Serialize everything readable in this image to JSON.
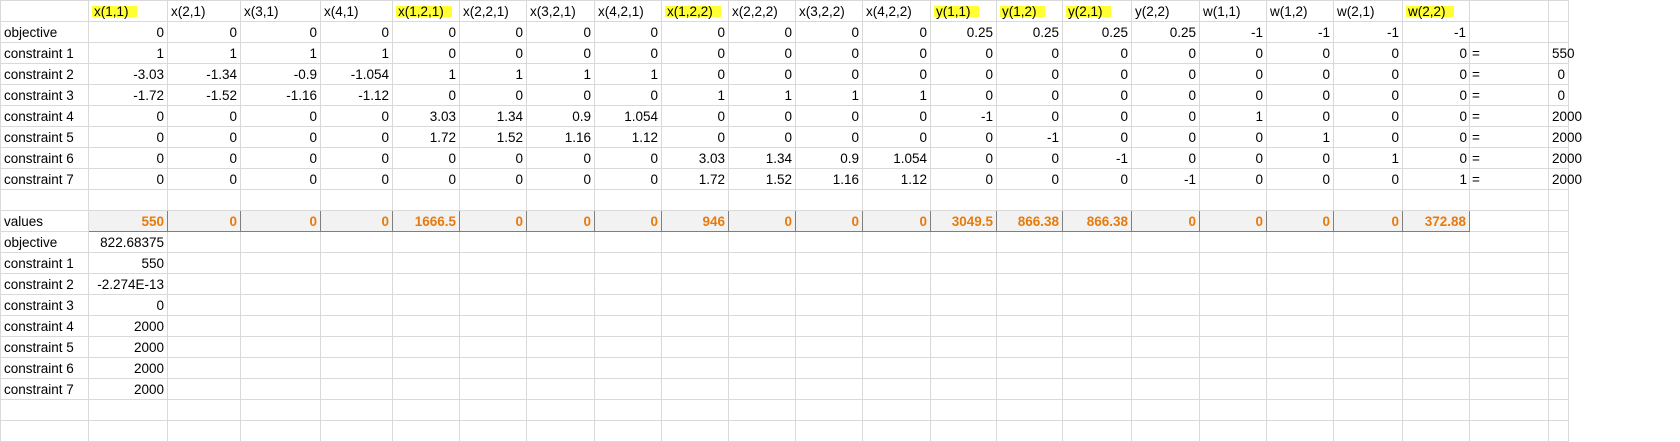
{
  "highlight_color": "#FFFF33",
  "value_color": "#E97A0A",
  "headers": [
    {
      "text": "x(1,1)",
      "hl": true
    },
    {
      "text": "x(2,1)",
      "hl": false
    },
    {
      "text": "x(3,1)",
      "hl": false
    },
    {
      "text": "x(4,1)",
      "hl": false
    },
    {
      "text": "x(1,2,1)",
      "hl": true
    },
    {
      "text": "x(2,2,1)",
      "hl": false
    },
    {
      "text": "x(3,2,1)",
      "hl": false
    },
    {
      "text": "x(4,2,1)",
      "hl": false
    },
    {
      "text": "x(1,2,2)",
      "hl": true
    },
    {
      "text": "x(2,2,2)",
      "hl": false
    },
    {
      "text": "x(3,2,2)",
      "hl": false
    },
    {
      "text": "x(4,2,2)",
      "hl": false
    },
    {
      "text": "y(1,1)",
      "hl": true
    },
    {
      "text": "y(1,2)",
      "hl": true
    },
    {
      "text": "y(2,1)",
      "hl": true
    },
    {
      "text": "y(2,2)",
      "hl": false
    },
    {
      "text": "w(1,1)",
      "hl": false
    },
    {
      "text": "w(1,2)",
      "hl": false
    },
    {
      "text": "w(2,1)",
      "hl": false
    },
    {
      "text": "w(2,2)",
      "hl": true
    }
  ],
  "matrix": [
    {
      "label": "objective",
      "values": [
        "0",
        "0",
        "0",
        "0",
        "0",
        "0",
        "0",
        "0",
        "0",
        "0",
        "0",
        "0",
        "0.25",
        "0.25",
        "0.25",
        "0.25",
        "-1",
        "-1",
        "-1",
        "-1"
      ],
      "eq": "",
      "rhs": ""
    },
    {
      "label": "constraint 1",
      "values": [
        "1",
        "1",
        "1",
        "1",
        "0",
        "0",
        "0",
        "0",
        "0",
        "0",
        "0",
        "0",
        "0",
        "0",
        "0",
        "0",
        "0",
        "0",
        "0",
        "0"
      ],
      "eq": "=",
      "rhs": "550"
    },
    {
      "label": "constraint 2",
      "values": [
        "-3.03",
        "-1.34",
        "-0.9",
        "-1.054",
        "1",
        "1",
        "1",
        "1",
        "0",
        "0",
        "0",
        "0",
        "0",
        "0",
        "0",
        "0",
        "0",
        "0",
        "0",
        "0"
      ],
      "eq": "=",
      "rhs": "0"
    },
    {
      "label": "constraint 3",
      "values": [
        "-1.72",
        "-1.52",
        "-1.16",
        "-1.12",
        "0",
        "0",
        "0",
        "0",
        "1",
        "1",
        "1",
        "1",
        "0",
        "0",
        "0",
        "0",
        "0",
        "0",
        "0",
        "0"
      ],
      "eq": "=",
      "rhs": "0"
    },
    {
      "label": "constraint 4",
      "values": [
        "0",
        "0",
        "0",
        "0",
        "3.03",
        "1.34",
        "0.9",
        "1.054",
        "0",
        "0",
        "0",
        "0",
        "-1",
        "0",
        "0",
        "0",
        "1",
        "0",
        "0",
        "0"
      ],
      "eq": "=",
      "rhs": "2000"
    },
    {
      "label": "constraint 5",
      "values": [
        "0",
        "0",
        "0",
        "0",
        "1.72",
        "1.52",
        "1.16",
        "1.12",
        "0",
        "0",
        "0",
        "0",
        "0",
        "-1",
        "0",
        "0",
        "0",
        "1",
        "0",
        "0"
      ],
      "eq": "=",
      "rhs": "2000"
    },
    {
      "label": "constraint 6",
      "values": [
        "0",
        "0",
        "0",
        "0",
        "0",
        "0",
        "0",
        "0",
        "3.03",
        "1.34",
        "0.9",
        "1.054",
        "0",
        "0",
        "-1",
        "0",
        "0",
        "0",
        "1",
        "0"
      ],
      "eq": "=",
      "rhs": "2000"
    },
    {
      "label": "constraint 7",
      "values": [
        "0",
        "0",
        "0",
        "0",
        "0",
        "0",
        "0",
        "0",
        "1.72",
        "1.52",
        "1.16",
        "1.12",
        "0",
        "0",
        "0",
        "-1",
        "0",
        "0",
        "0",
        "1"
      ],
      "eq": "=",
      "rhs": "2000"
    }
  ],
  "values_label": "values",
  "values": [
    "550",
    "0",
    "0",
    "0",
    "1666.5",
    "0",
    "0",
    "0",
    "946",
    "0",
    "0",
    "0",
    "3049.5",
    "866.38",
    "866.38",
    "0",
    "0",
    "0",
    "0",
    "372.88"
  ],
  "results": [
    {
      "label": "objective",
      "value": "822.68375"
    },
    {
      "label": "constraint 1",
      "value": "550"
    },
    {
      "label": "constraint 2",
      "value": "-2.274E-13"
    },
    {
      "label": "constraint 3",
      "value": "0"
    },
    {
      "label": "constraint 4",
      "value": "2000"
    },
    {
      "label": "constraint 5",
      "value": "2000"
    },
    {
      "label": "constraint 6",
      "value": "2000"
    },
    {
      "label": "constraint 7",
      "value": "2000"
    }
  ]
}
